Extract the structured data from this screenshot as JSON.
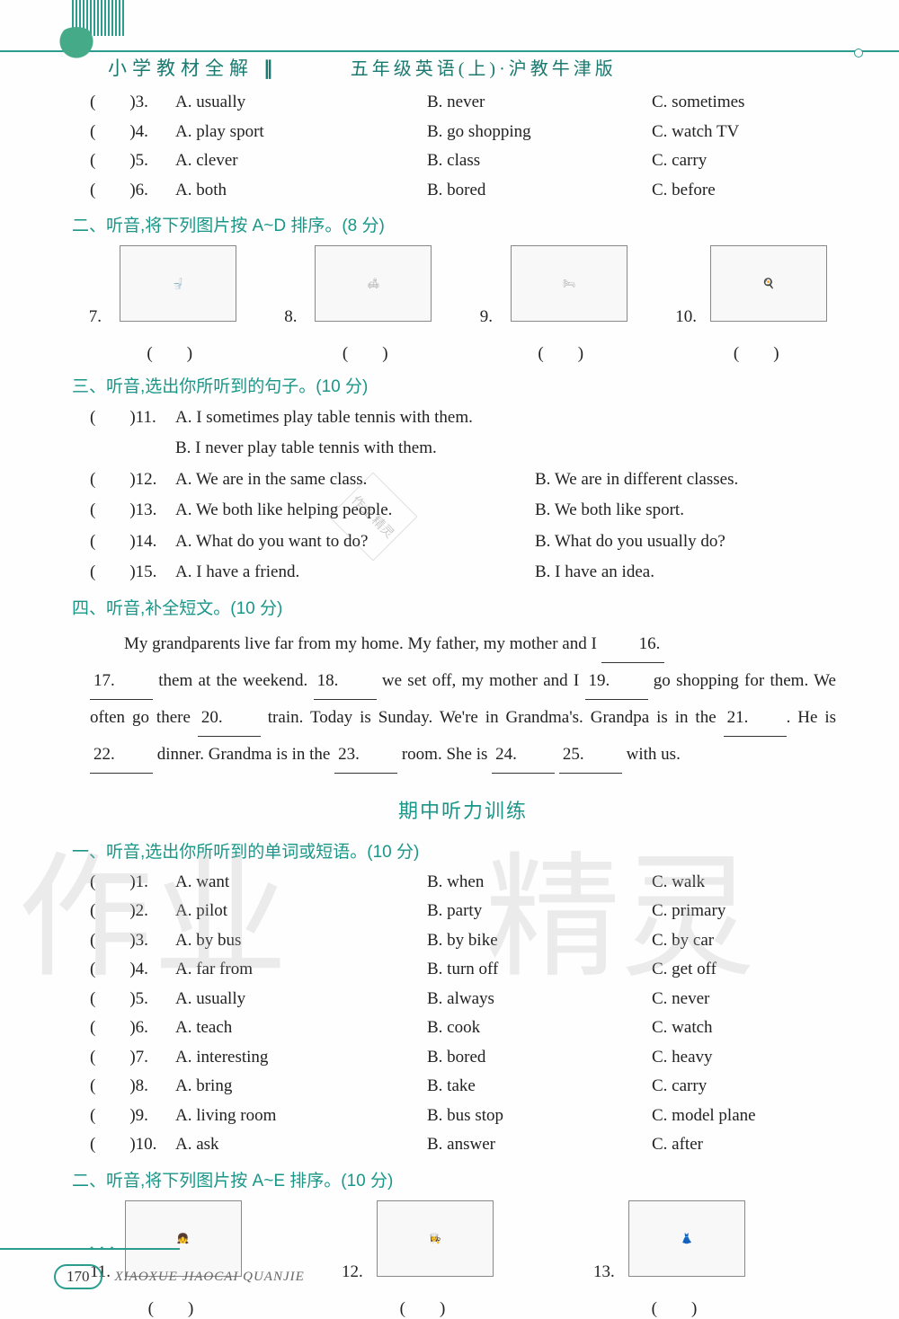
{
  "header": {
    "book_title": "小学教材全解",
    "grade_title": "五年级英语(上)·沪教牛津版"
  },
  "section1_items": [
    {
      "n": "3",
      "a": "A. usually",
      "b": "B. never",
      "c": "C. sometimes"
    },
    {
      "n": "4",
      "a": "A. play sport",
      "b": "B. go shopping",
      "c": "C. watch TV"
    },
    {
      "n": "5",
      "a": "A. clever",
      "b": "B. class",
      "c": "C. carry"
    },
    {
      "n": "6",
      "a": "A. both",
      "b": "B. bored",
      "c": "C. before"
    }
  ],
  "section2": {
    "title": "二、听音,将下列图片按 A~D 排序。(8 分)",
    "nums": [
      "7.",
      "8.",
      "9.",
      "10."
    ]
  },
  "section3": {
    "title": "三、听音,选出你所听到的句子。(10 分)",
    "items": [
      {
        "n": "11",
        "a": "A. I sometimes play table tennis with them.",
        "b": "",
        "b2": "B. I never play table tennis with them."
      },
      {
        "n": "12",
        "a": "A. We are in the same class.",
        "b": "B. We are in different classes."
      },
      {
        "n": "13",
        "a": "A. We both like helping people.",
        "b": "B. We both like sport."
      },
      {
        "n": "14",
        "a": "A. What do you want to do?",
        "b": "B. What do you usually do?"
      },
      {
        "n": "15",
        "a": "A. I have a friend.",
        "b": "B. I have an idea."
      }
    ]
  },
  "section4": {
    "title": "四、听音,补全短文。(10 分)",
    "p1a": "My grandparents live far from my home. My father, my mother and I ",
    "b16": "16.",
    "b17": "17.",
    "p2a": " them at the weekend. ",
    "b18": "18.",
    "p2b": " we set off, my mother and I ",
    "b19": "19.",
    "p3a": "go shopping for them. We often go there ",
    "b20": "20.",
    "p3b": " train. Today is Sunday. We're in",
    "p4a": "Grandma's. Grandpa is in the ",
    "b21": "21.",
    "p4b": ". He is ",
    "b22": "22.",
    "p4c": " dinner. Grandma is in the",
    "b23": "23.",
    "p5a": " room. She is ",
    "b24": "24.",
    "sp": " ",
    "b25": "25.",
    "p5b": " with us."
  },
  "mid_title": "期中听力训练",
  "sectionA": {
    "title": "一、听音,选出你所听到的单词或短语。(10 分)",
    "items": [
      {
        "n": "1",
        "a": "A. want",
        "b": "B. when",
        "c": "C. walk"
      },
      {
        "n": "2",
        "a": "A. pilot",
        "b": "B. party",
        "c": "C. primary"
      },
      {
        "n": "3",
        "a": "A. by bus",
        "b": "B. by bike",
        "c": "C. by car"
      },
      {
        "n": "4",
        "a": "A. far from",
        "b": "B. turn off",
        "c": "C. get off"
      },
      {
        "n": "5",
        "a": "A. usually",
        "b": "B. always",
        "c": "C. never"
      },
      {
        "n": "6",
        "a": "A. teach",
        "b": "B. cook",
        "c": "C. watch"
      },
      {
        "n": "7",
        "a": "A. interesting",
        "b": "B. bored",
        "c": "C. heavy"
      },
      {
        "n": "8",
        "a": "A. bring",
        "b": "B. take",
        "c": "C. carry"
      },
      {
        "n": "9",
        "a": "A. living room",
        "b": "B. bus stop",
        "c": "C. model plane"
      },
      {
        "n": "10",
        "a": "A. ask",
        "b": "B. answer",
        "c": "C. after"
      }
    ]
  },
  "sectionB": {
    "title": "二、听音,将下列图片按 A~E 排序。(10 分)",
    "nums": [
      "11.",
      "12.",
      "13."
    ]
  },
  "footer": {
    "page": "170",
    "text": "XIAOXUE JIAOCAI QUANJIE"
  },
  "paren_text": "(　　)",
  "watermark": {
    "w1": "作业",
    "w2": "精灵",
    "small": "作业\n精灵"
  }
}
